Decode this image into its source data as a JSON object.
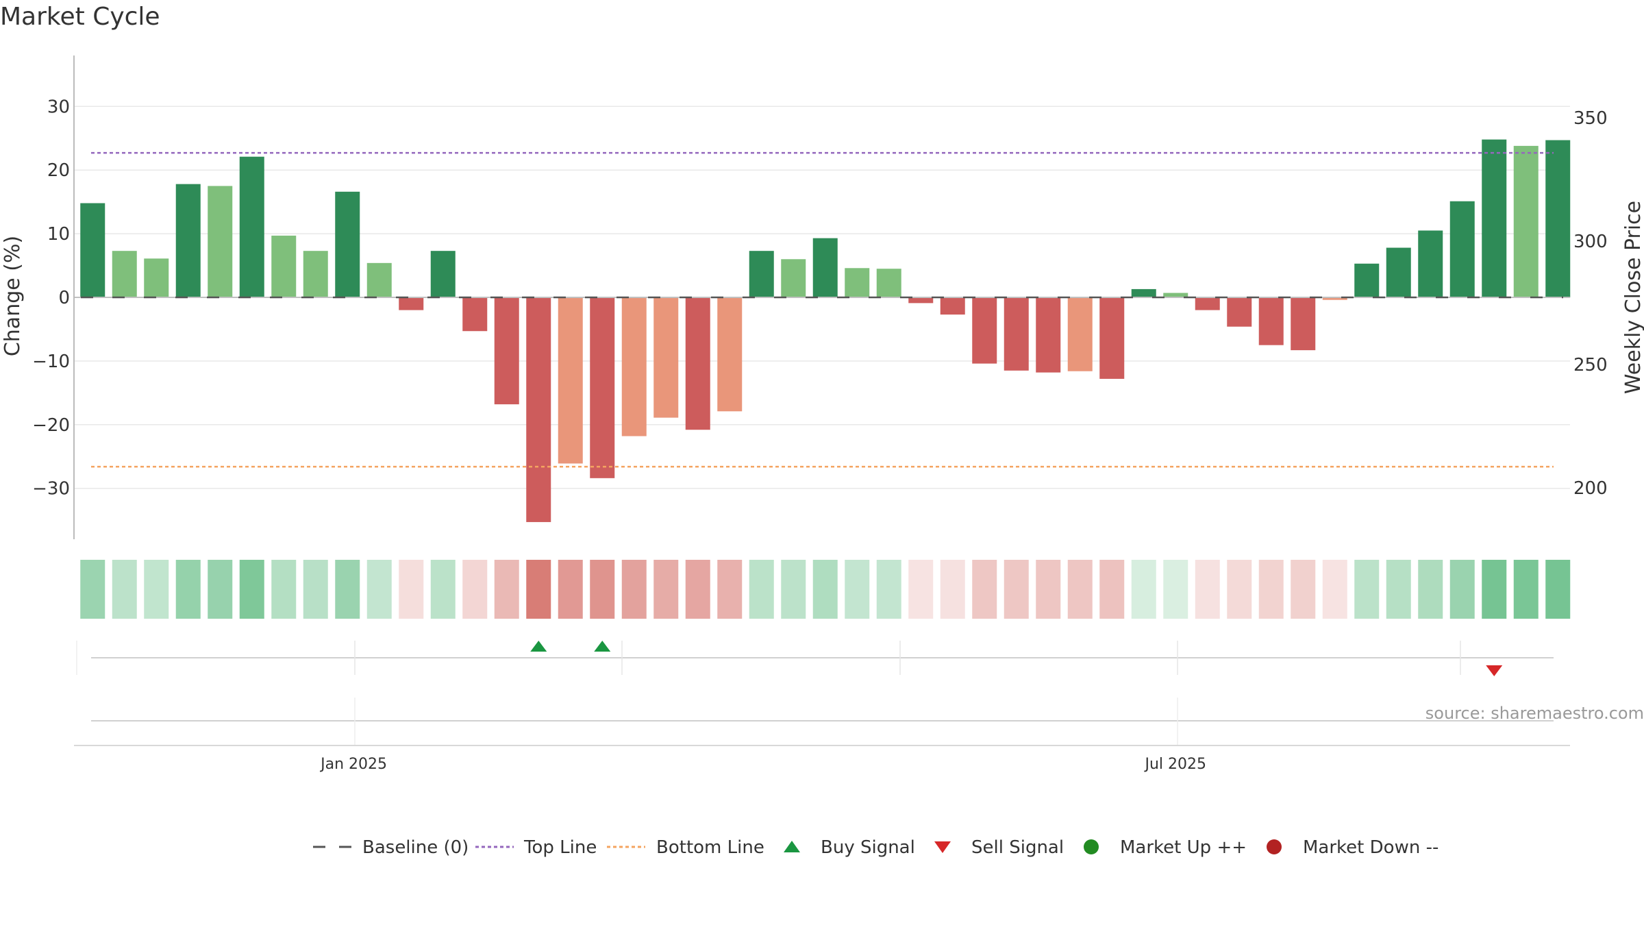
{
  "title": "Market Cycle",
  "source_text": "source: sharemaestro.com",
  "colors": {
    "up_strong": "#2e8b57",
    "up_light": "#7fbf7b",
    "down_strong": "#cd5c5c",
    "down_light": "#e9967a",
    "top_line": "#9467bd",
    "bottom_line": "#f4a460",
    "baseline": "#555555",
    "buy_signal": "#1a9641",
    "sell_signal": "#d62728",
    "market_up": "#228b22",
    "market_down": "#b22222"
  },
  "chart_data": {
    "type": "bar",
    "title": "Market Cycle",
    "ylabel": "Change (%)",
    "y2label": "Weekly Close Price",
    "ylim": [
      -38,
      38
    ],
    "yticks": [
      -30,
      -20,
      -10,
      0,
      10,
      20,
      30
    ],
    "ytick_labels": [
      "−30",
      "−20",
      "−10",
      "0",
      "10",
      "20",
      "30"
    ],
    "y2_ticks": [
      200,
      250,
      300,
      350
    ],
    "y2_tick_labels": [
      "200",
      "250",
      "300",
      "350"
    ],
    "xtick_labels": [
      "Jan 2025",
      "Jul 2025"
    ],
    "xtick_positions": [
      8.7,
      34.5
    ],
    "grid": true,
    "top_line": 22.7,
    "bottom_line": -26.6,
    "series": [
      {
        "values": [
          14.8,
          7.3,
          6.1,
          17.8,
          17.5,
          22.1,
          9.7,
          7.3,
          16.6,
          5.4,
          -2.0,
          7.3,
          -5.3,
          -16.8,
          -35.3,
          -26.1,
          -28.4,
          -21.8,
          -18.9,
          -20.8,
          -17.9,
          7.3,
          6.0,
          9.3,
          4.6,
          4.5,
          -0.9,
          -2.7,
          -10.4,
          -11.5,
          -11.8,
          -11.6,
          -12.8,
          1.3,
          0.7,
          -2.0,
          -4.6,
          -7.5,
          -8.3,
          -0.4,
          5.3,
          7.8,
          10.5,
          15.1,
          24.8,
          23.8,
          24.7
        ]
      }
    ],
    "bar_intensity": [
      1,
      0,
      0,
      1,
      0,
      1,
      0,
      0,
      1,
      0,
      1,
      1,
      1,
      1,
      1,
      0,
      1,
      0,
      0,
      1,
      0,
      1,
      0,
      1,
      0,
      0,
      1,
      1,
      1,
      1,
      1,
      0,
      1,
      1,
      0,
      1,
      1,
      1,
      1,
      0,
      1,
      1,
      1,
      1,
      1,
      0,
      1
    ],
    "heat_strip": [
      0.45,
      0.3,
      0.28,
      0.48,
      0.47,
      0.58,
      0.34,
      0.32,
      0.46,
      0.27,
      0.18,
      0.31,
      0.22,
      0.38,
      0.7,
      0.55,
      0.58,
      0.5,
      0.45,
      0.48,
      0.42,
      0.31,
      0.3,
      0.36,
      0.27,
      0.27,
      0.15,
      0.16,
      0.3,
      0.3,
      0.31,
      0.31,
      0.33,
      0.18,
      0.17,
      0.16,
      0.2,
      0.24,
      0.25,
      0.15,
      0.31,
      0.33,
      0.37,
      0.46,
      0.62,
      0.6,
      0.62
    ],
    "buy_signals": [
      14,
      16
    ],
    "sell_signals": [
      44
    ],
    "legend": [
      {
        "label": "Baseline (0)",
        "marker": "dash"
      },
      {
        "label": "Top Line",
        "marker": "dotted-purple"
      },
      {
        "label": "Bottom Line",
        "marker": "dotted-orange"
      },
      {
        "label": "Buy Signal",
        "marker": "triangle-up"
      },
      {
        "label": "Sell Signal",
        "marker": "triangle-down"
      },
      {
        "label": "Market Up ++",
        "marker": "circle-green"
      },
      {
        "label": "Market Down --",
        "marker": "circle-red"
      }
    ],
    "legend_position": "bottom-center"
  }
}
